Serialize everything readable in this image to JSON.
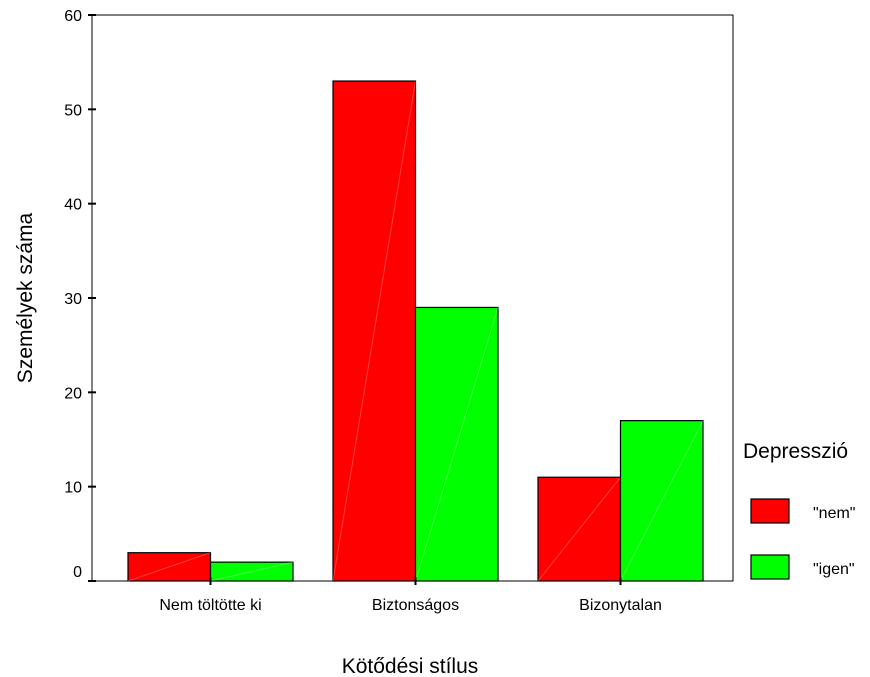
{
  "chart_data": {
    "type": "bar",
    "title": "",
    "xlabel": "Kötődési stílus",
    "ylabel": "Személyek száma",
    "categories": [
      "Nem töltötte ki",
      "Biztonságos",
      "Bizonytalan"
    ],
    "series": [
      {
        "name": "\"nem\"",
        "color": "#ff0000",
        "values": [
          3,
          53,
          11
        ]
      },
      {
        "name": "\"igen\"",
        "color": "#00ff00",
        "values": [
          2,
          29,
          17
        ]
      }
    ],
    "ylim": [
      0,
      60
    ],
    "yticks": [
      0,
      10,
      20,
      30,
      40,
      50,
      60
    ],
    "grid": false,
    "legend": {
      "title": "Depresszió",
      "position": "right"
    }
  }
}
